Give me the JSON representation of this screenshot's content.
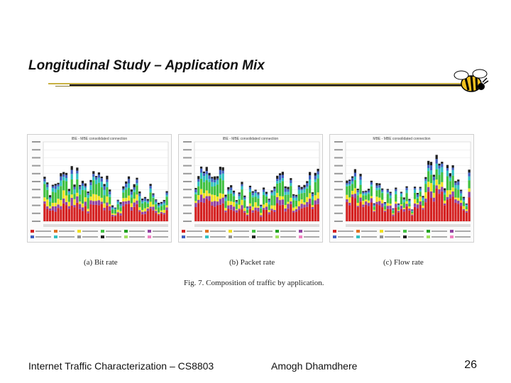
{
  "slide": {
    "title": "Longitudinal Study – Application Mix",
    "figure_caption": "Fig. 7.  Composition of traffic by application.",
    "footer_left": "Internet Traffic Characterization – CS8803",
    "footer_center": "Amogh Dhamdhere",
    "page_number": "26"
  },
  "panels": [
    {
      "caption": "(a) Bit rate",
      "chart_title": "IBE - MBE consolidated connection"
    },
    {
      "caption": "(b) Packet rate",
      "chart_title": "IBE - MBE consolidated connection"
    },
    {
      "caption": "(c) Flow rate",
      "chart_title": "MBE - MBE consolidated connection"
    }
  ],
  "colors": {
    "app_colors": [
      "#d42020",
      "#e07020",
      "#f0e020",
      "#40c040",
      "#20a020",
      "#9040a0",
      "#4060c0",
      "#30c0c0",
      "#909090",
      "#202020",
      "#a0e060",
      "#f080c0"
    ]
  }
}
